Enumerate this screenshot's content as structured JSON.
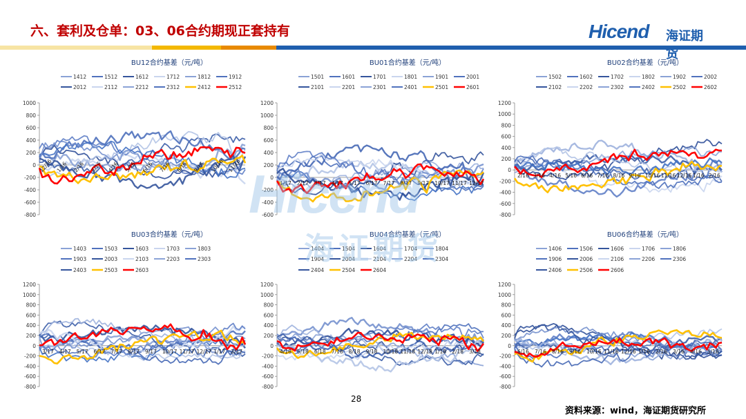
{
  "header": {
    "title": "六、套利及仓单：03、06合约期现正套持有",
    "logo_text": "Hicend",
    "logo_cn": "海证期货",
    "band_colors": [
      "#f7e4a4",
      "#f3b800",
      "#e88a00",
      "#1f5fae",
      "#1f5fae"
    ]
  },
  "watermark": {
    "text": "Hicend",
    "cn": "海证期货"
  },
  "footer": {
    "page_number": "28",
    "source": "资料来源：wind，海证期货研究所"
  },
  "chart_data": [
    {
      "type": "line",
      "title": "BU12合约基差（元/吨）",
      "legend_rows": [
        [
          "1412",
          "1512",
          "1612",
          "1712",
          "1812",
          "1912"
        ],
        [
          "2012",
          "2112",
          "2212",
          "2312",
          "2412",
          "2512"
        ]
      ],
      "ylim": [
        -800,
        1000
      ],
      "ystep": 200,
      "yticks": [
        "1000",
        "800",
        "600",
        "400",
        "200",
        "0",
        "-200",
        "-400",
        "-600",
        "-800"
      ],
      "xticks": [
        "12/16",
        "1/16",
        "2/16",
        "3/16",
        "4/16",
        "5/16",
        "6/16",
        "7/16",
        "8/16",
        "9/16",
        "10/16",
        "11/16"
      ],
      "rotate_xticks": true,
      "highlight": {
        "2412": "#ffc000",
        "2512": "#ff0000"
      }
    },
    {
      "type": "line",
      "title": "BU01合约基差（元/吨）",
      "legend_rows": [
        [
          "1501",
          "1601",
          "1701",
          "1801",
          "1901",
          "2001"
        ],
        [
          "2101",
          "2201",
          "2301",
          "2401",
          "2501",
          "2601"
        ]
      ],
      "ylim": [
        -600,
        1200
      ],
      "ystep": 200,
      "yticks": [
        "1200",
        "1000",
        "800",
        "600",
        "400",
        "200",
        "0",
        "-200",
        "-400",
        "-600"
      ],
      "xticks": [
        "1/17",
        "2/17",
        "3/17",
        "4/17",
        "5/17",
        "6/17",
        "7/17",
        "8/17",
        "9/17",
        "10/17",
        "11/17",
        "12/17"
      ],
      "rotate_xticks": false,
      "highlight": {
        "2501": "#ffc000",
        "2601": "#ff0000"
      }
    },
    {
      "type": "line",
      "title": "BU02合约基差（元/吨）",
      "legend_rows": [
        [
          "1502",
          "1602",
          "1702",
          "1802",
          "1902",
          "2002"
        ],
        [
          "2102",
          "2202",
          "2302",
          "2402",
          "2502",
          "2602"
        ]
      ],
      "ylim": [
        -800,
        1200
      ],
      "ystep": 200,
      "yticks": [
        "1200",
        "1000",
        "800",
        "600",
        "400",
        "200",
        "0",
        "-200",
        "-400",
        "-600",
        "-800"
      ],
      "xticks": [
        "2/16",
        "3/16",
        "4/16",
        "5/16",
        "6/16",
        "7/16",
        "8/16",
        "9/16",
        "10/16",
        "11/16",
        "12/16",
        "1/16",
        "2/16"
      ],
      "rotate_xticks": false,
      "highlight": {
        "2502": "#ffc000",
        "2602": "#ff0000"
      }
    },
    {
      "type": "line",
      "title": "BU03合约基差（元/吨）",
      "legend_rows": [
        [
          "1403",
          "1503",
          "1603",
          "1703",
          "1803"
        ],
        [
          "1903",
          "2003",
          "2103",
          "2203",
          "2303"
        ],
        [
          "2403",
          "2503",
          "2603"
        ]
      ],
      "ylim": [
        -800,
        1200
      ],
      "ystep": 200,
      "yticks": [
        "1200",
        "1000",
        "800",
        "600",
        "400",
        "200",
        "0",
        "-200",
        "-400",
        "-600",
        "-800"
      ],
      "xticks": [
        "3/17",
        "4/17",
        "5/17",
        "6/17",
        "7/17",
        "8/17",
        "9/17",
        "10/17",
        "11/17",
        "12/17",
        "1/17",
        "2/17"
      ],
      "rotate_xticks": false,
      "highlight": {
        "2503": "#ffc000",
        "2603": "#ff0000"
      }
    },
    {
      "type": "line",
      "title": "BU04合约基差（元/吨）",
      "legend_rows": [
        [
          "1404",
          "1504",
          "1604",
          "1704",
          "1804"
        ],
        [
          "1904",
          "2004",
          "2104",
          "2204",
          "2304"
        ],
        [
          "2404",
          "2504",
          "2604"
        ]
      ],
      "ylim": [
        -800,
        1200
      ],
      "ystep": 200,
      "yticks": [
        "1200",
        "1000",
        "800",
        "600",
        "400",
        "200",
        "0",
        "-200",
        "-400",
        "-600",
        "-800"
      ],
      "xticks": [
        "4/18",
        "5/18",
        "6/18",
        "7/18",
        "8/18",
        "9/18",
        "10/18",
        "11/18",
        "12/18",
        "1/18",
        "2/18",
        "3/18"
      ],
      "rotate_xticks": false,
      "highlight": {
        "2504": "#ffc000",
        "2604": "#ff0000"
      }
    },
    {
      "type": "line",
      "title": "BU06合约基差（元/吨）",
      "legend_rows": [
        [
          "1406",
          "1506",
          "1606",
          "1706",
          "1806"
        ],
        [
          "1906",
          "2006",
          "2106",
          "2206",
          "2306"
        ],
        [
          "2406",
          "2506",
          "2606"
        ]
      ],
      "ylim": [
        -800,
        1200
      ],
      "ystep": 200,
      "yticks": [
        "1200",
        "1000",
        "800",
        "600",
        "400",
        "200",
        "0",
        "-200",
        "-400",
        "-600",
        "-800"
      ],
      "xticks": [
        "6/16",
        "7/16",
        "8/16",
        "9/16",
        "10/16",
        "11/16",
        "12/16",
        "1/16",
        "2/16",
        "3/16",
        "4/16",
        "5/16"
      ],
      "rotate_xticks": false,
      "highlight": {
        "2506": "#ffc000",
        "2606": "#ff0000"
      }
    }
  ]
}
